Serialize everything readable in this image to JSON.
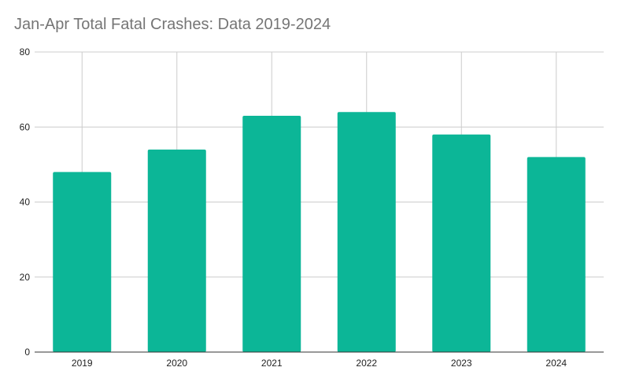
{
  "chart_data": {
    "type": "bar",
    "title": "Jan-Apr Total Fatal Crashes:  Data 2019-2024",
    "categories": [
      "2019",
      "2020",
      "2021",
      "2022",
      "2023",
      "2024"
    ],
    "values": [
      48,
      54,
      63,
      64,
      58,
      52
    ],
    "xlabel": "",
    "ylabel": "",
    "ylim": [
      0,
      80
    ],
    "yticks": [
      0,
      20,
      40,
      60,
      80
    ],
    "grid": true,
    "bar_color": "#0cb697"
  }
}
